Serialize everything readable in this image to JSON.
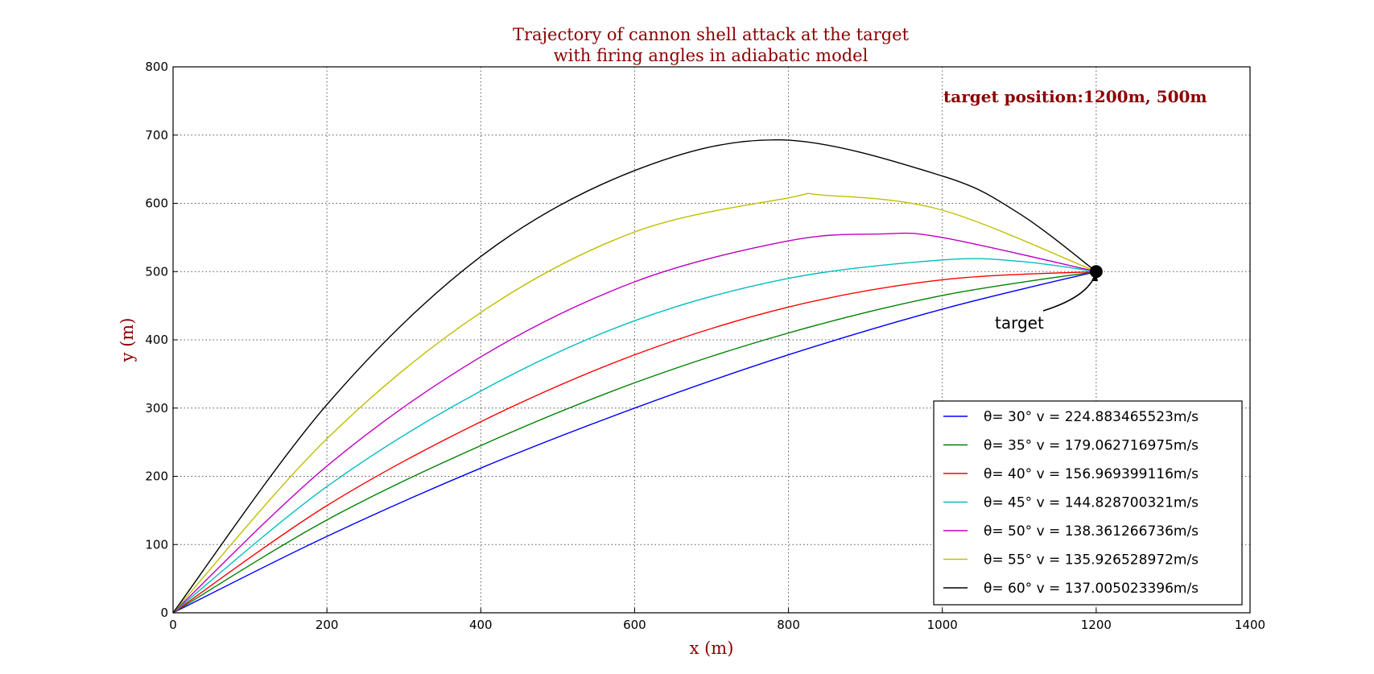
{
  "chart_data": {
    "type": "line",
    "title_line1": "Trajectory of cannon shell attack at the target",
    "title_line2": "with firing angles in adiabatic model",
    "xlabel": "x (m)",
    "ylabel": "y (m)",
    "xlim": [
      0,
      1400
    ],
    "ylim": [
      0,
      800
    ],
    "xticks": [
      "0",
      "200",
      "400",
      "600",
      "800",
      "1000",
      "1200",
      "1400"
    ],
    "yticks": [
      "0",
      "100",
      "200",
      "300",
      "400",
      "500",
      "600",
      "700",
      "800"
    ],
    "grid": true,
    "legend_position": "lower-right",
    "target": {
      "x": 1200,
      "y": 500,
      "label": "target"
    },
    "target_position_text": "target position:1200m, 500m",
    "series": [
      {
        "name": "θ= 30° v = 224.883465523m/s",
        "color": "#0000ff",
        "x": [
          0,
          200,
          400,
          600,
          800,
          1000,
          1200
        ],
        "y": [
          0,
          112,
          212,
          300,
          378,
          445,
          500
        ]
      },
      {
        "name": "θ= 35° v = 179.062716975m/s",
        "color": "#008000",
        "x": [
          0,
          200,
          400,
          600,
          800,
          1000,
          1200
        ],
        "y": [
          0,
          136,
          245,
          337,
          410,
          465,
          500
        ]
      },
      {
        "name": "θ= 40° v = 156.969399116m/s",
        "color": "#ff0000",
        "x": [
          0,
          200,
          400,
          600,
          800,
          1000,
          1200
        ],
        "y": [
          0,
          157,
          280,
          378,
          448,
          488,
          500
        ]
      },
      {
        "name": "θ= 45° v = 144.828700321m/s",
        "color": "#00bfbf",
        "x": [
          0,
          200,
          400,
          600,
          800,
          1000,
          1100,
          1200
        ],
        "y": [
          0,
          185,
          325,
          428,
          490,
          517,
          515,
          500
        ]
      },
      {
        "name": "θ= 50° v = 138.361266736m/s",
        "color": "#bf00bf",
        "x": [
          0,
          200,
          400,
          600,
          800,
          920,
          1000,
          1200
        ],
        "y": [
          0,
          215,
          375,
          485,
          545,
          555,
          550,
          500
        ]
      },
      {
        "name": "θ= 55° v = 135.926528972m/s",
        "color": "#bfbf00",
        "x": [
          0,
          200,
          400,
          600,
          800,
          845,
          1000,
          1200
        ],
        "y": [
          0,
          255,
          440,
          558,
          608,
          612,
          590,
          500
        ]
      },
      {
        "name": "θ= 60° v = 137.005023396m/s",
        "color": "#000000",
        "x": [
          0,
          200,
          400,
          600,
          790,
          1000,
          1100,
          1200
        ],
        "y": [
          0,
          305,
          522,
          648,
          693,
          640,
          585,
          500
        ]
      }
    ]
  }
}
